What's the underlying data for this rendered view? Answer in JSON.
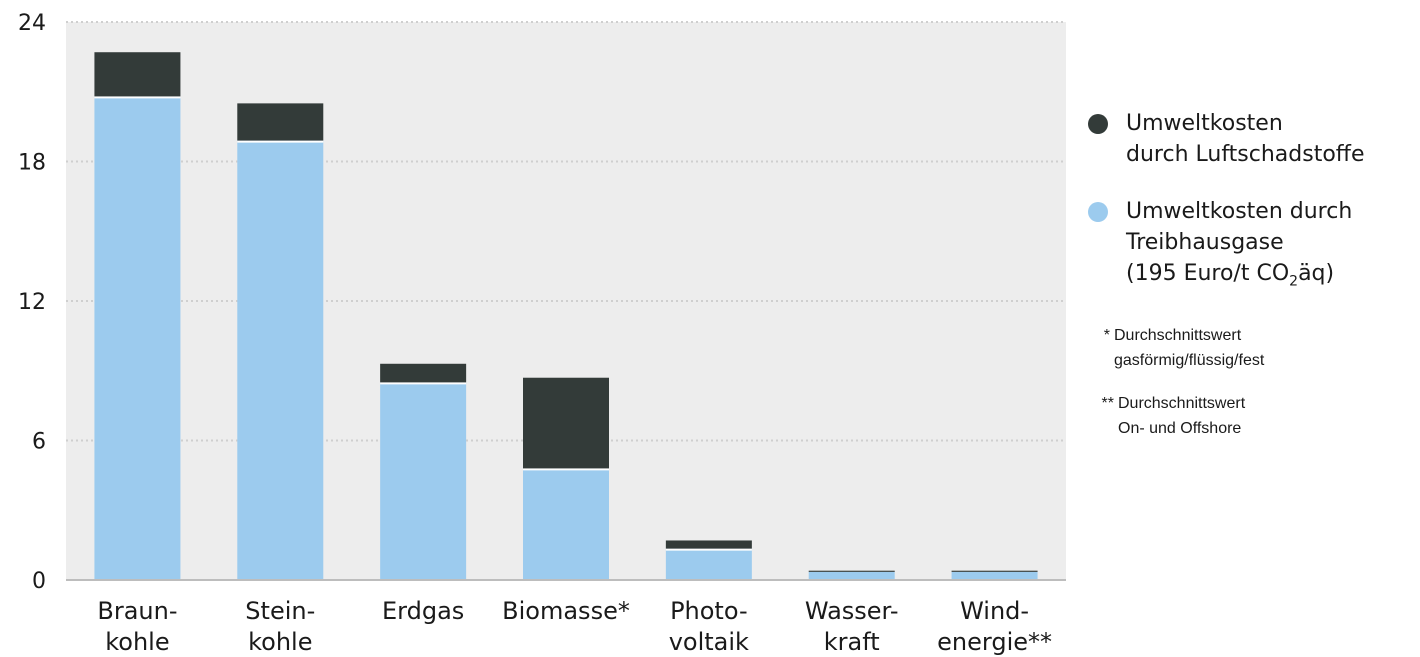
{
  "chart_data": {
    "type": "bar",
    "stacked": true,
    "categories": [
      [
        "Braun-",
        "kohle"
      ],
      [
        "Stein-",
        "kohle"
      ],
      [
        "Erdgas"
      ],
      [
        "Biomasse*"
      ],
      [
        "Photo-",
        "voltaik"
      ],
      [
        "Wasser-",
        "kraft"
      ],
      [
        "Wind-",
        "energie**"
      ]
    ],
    "series": [
      {
        "name": "Umweltkosten durch Treibhausgase (195 Euro/t CO2äq)",
        "color": "#9ccbee",
        "values": [
          20.8,
          18.9,
          8.5,
          4.8,
          1.35,
          0.35,
          0.35
        ]
      },
      {
        "name": "Umweltkosten durch Luftschadstoffe",
        "color": "#333b39",
        "values": [
          1.9,
          1.6,
          0.8,
          3.9,
          0.35,
          0.05,
          0.05
        ]
      }
    ],
    "yticks": [
      "0",
      "6",
      "12",
      "18",
      "24"
    ],
    "ylim": [
      0,
      24
    ],
    "grid": "horizontal-dotted",
    "plot_background": "#ededed",
    "legend_position": "right"
  },
  "legend": {
    "items": [
      {
        "lines": [
          "Umweltkosten",
          "durch Luftschadstoffe"
        ],
        "color": "#333b39"
      },
      {
        "lines": [
          "Umweltkosten durch",
          "Treibhausgase"
        ],
        "last_line_pre": "(195 Euro/t CO",
        "last_line_sub": "2",
        "last_line_post": "äq)",
        "color": "#9ccbee"
      }
    ]
  },
  "footnotes": [
    {
      "mark": "*",
      "lines": [
        "Durchschnittswert",
        "gasförmig/flüssig/fest"
      ]
    },
    {
      "mark": "**",
      "lines": [
        "Durchschnittswert",
        "On- und Offshore"
      ]
    }
  ]
}
